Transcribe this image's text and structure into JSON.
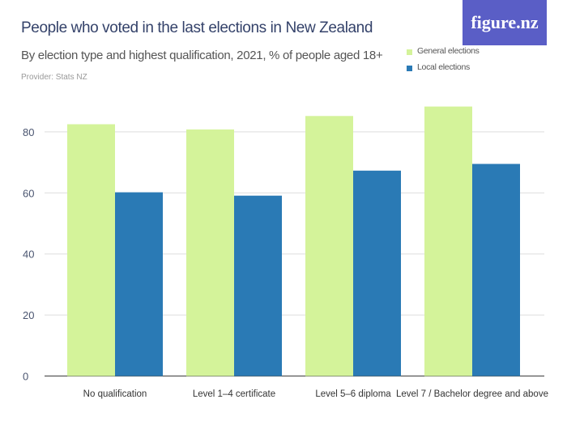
{
  "logo": "figure.nz",
  "chart_data": {
    "type": "bar",
    "title": "People who voted in the last elections in New Zealand",
    "subtitle": "By election type and highest qualification, 2021, % of people aged 18+",
    "provider": "Provider: Stats NZ",
    "categories": [
      "No qualification",
      "Level 1–4 certificate",
      "Level 5–6 diploma",
      "Level 7 / Bachelor degree and above"
    ],
    "series": [
      {
        "name": "General elections",
        "color": "#d4f39a",
        "values": [
          82.5,
          80.8,
          85.2,
          88.3
        ]
      },
      {
        "name": "Local elections",
        "color": "#2a7ab5",
        "values": [
          60.2,
          59.1,
          67.3,
          69.5
        ]
      }
    ],
    "ylim": [
      0,
      90
    ],
    "yticks": [
      0,
      20,
      40,
      60,
      80
    ],
    "grid": true,
    "legend": "top-right"
  }
}
